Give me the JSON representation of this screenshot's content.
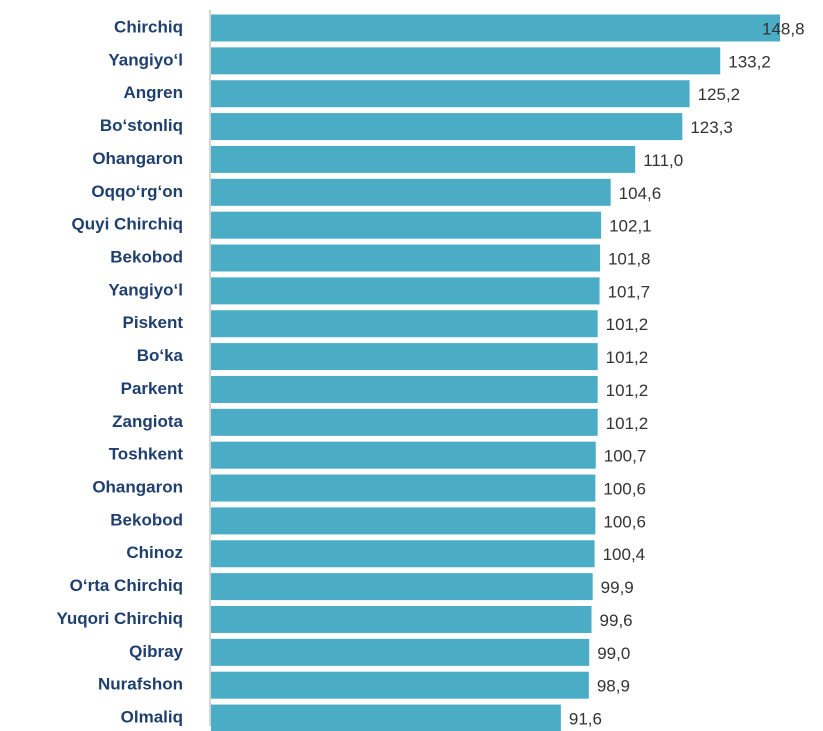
{
  "chart_data": {
    "type": "bar",
    "orientation": "horizontal",
    "categories": [
      "Chirchiq",
      "Yangiyo‘l",
      "Angren",
      "Bo‘stonliq",
      "Ohangaron",
      "Oqqo‘rg‘on",
      "Quyi Chirchiq",
      "Bekobod",
      "Yangiyo‘l",
      "Piskent",
      "Bo‘ka",
      "Parkent",
      "Zangiota",
      "Toshkent",
      "Ohangaron",
      "Bekobod",
      "Chinoz",
      "O‘rta Chirchiq",
      "Yuqori Chirchiq",
      "Qibray",
      "Nurafshon",
      "Olmaliq"
    ],
    "values": [
      148.8,
      133.2,
      125.2,
      123.3,
      111.0,
      104.6,
      102.1,
      101.8,
      101.7,
      101.2,
      101.2,
      101.2,
      101.2,
      100.7,
      100.6,
      100.6,
      100.4,
      99.9,
      99.6,
      99.0,
      98.9,
      91.6
    ],
    "value_labels": [
      "148,8",
      "133,2",
      "125,2",
      "123,3",
      "111,0",
      "104,6",
      "102,1",
      "101,8",
      "101,7",
      "101,2",
      "101,2",
      "101,2",
      "101,2",
      "100,7",
      "100,6",
      "100,6",
      "100,4",
      "99,9",
      "99,6",
      "99,0",
      "98,9",
      "91,6"
    ],
    "color": "#4bacc6"
  }
}
